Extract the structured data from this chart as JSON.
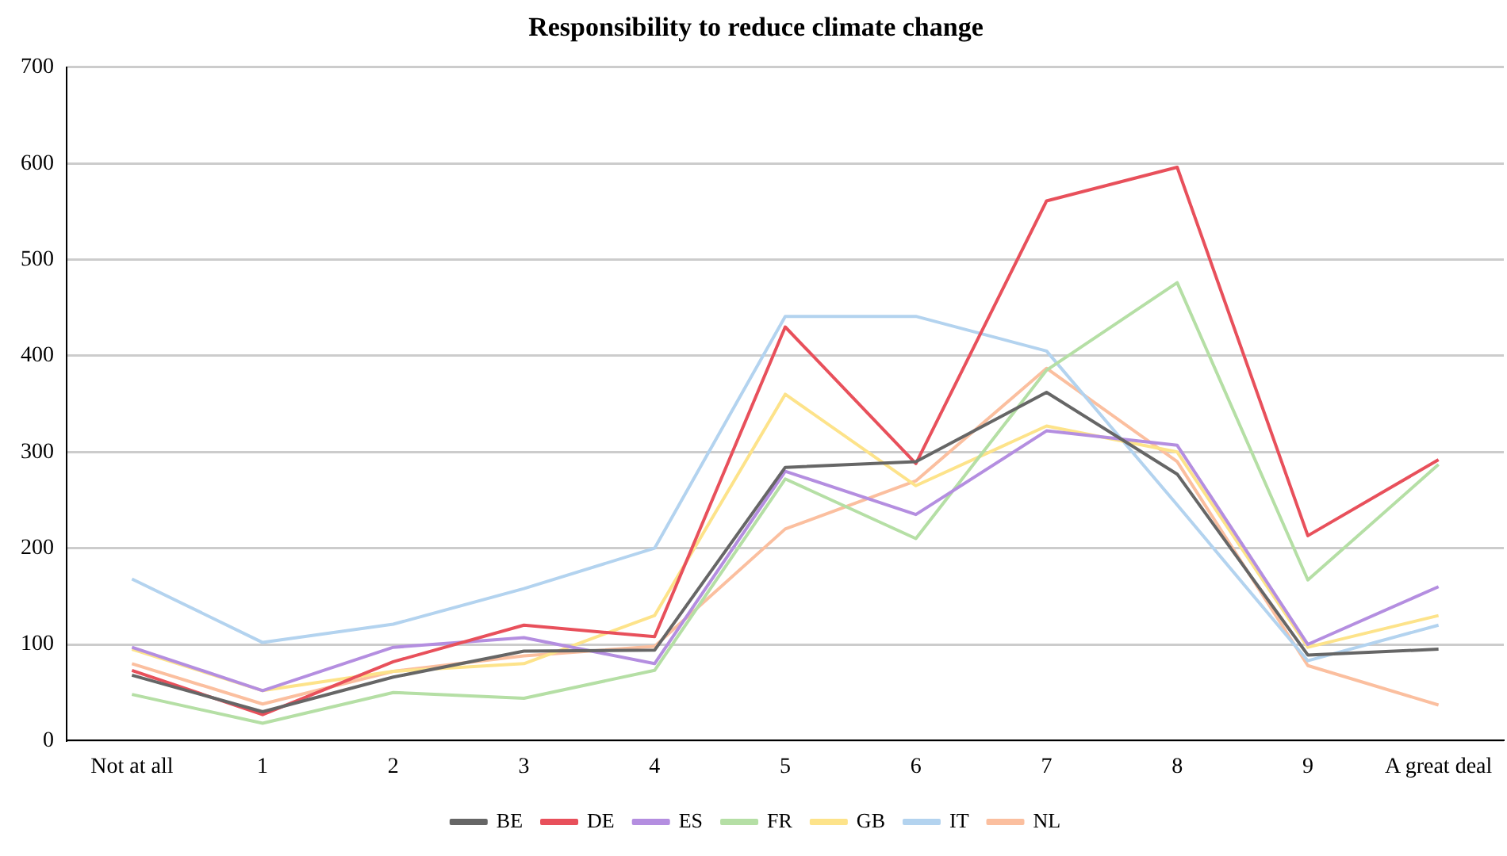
{
  "chart_data": {
    "type": "line",
    "title": "Responsibility to reduce climate change",
    "categories": [
      "Not at all",
      "1",
      "2",
      "3",
      "4",
      "5",
      "6",
      "7",
      "8",
      "9",
      "A great deal"
    ],
    "series": [
      {
        "name": "BE",
        "color": "#666666",
        "values": [
          68,
          30,
          66,
          93,
          94,
          284,
          290,
          362,
          277,
          89,
          95
        ]
      },
      {
        "name": "DE",
        "color": "#e8505b",
        "values": [
          73,
          27,
          82,
          120,
          108,
          430,
          288,
          561,
          596,
          213,
          292
        ]
      },
      {
        "name": "ES",
        "color": "#b48ee0",
        "values": [
          97,
          52,
          97,
          107,
          80,
          280,
          235,
          322,
          307,
          100,
          160
        ]
      },
      {
        "name": "FR",
        "color": "#b5dfa5",
        "values": [
          48,
          18,
          50,
          44,
          73,
          272,
          210,
          385,
          476,
          167,
          287
        ]
      },
      {
        "name": "GB",
        "color": "#fde38a",
        "values": [
          95,
          52,
          72,
          80,
          130,
          360,
          265,
          327,
          300,
          97,
          130
        ]
      },
      {
        "name": "IT",
        "color": "#b3d3ef",
        "values": [
          168,
          102,
          121,
          158,
          200,
          441,
          441,
          405,
          245,
          83,
          120
        ]
      },
      {
        "name": "NL",
        "color": "#fbbf9f",
        "values": [
          80,
          38,
          72,
          88,
          98,
          220,
          270,
          387,
          290,
          78,
          37
        ]
      }
    ],
    "ylim": [
      0,
      700
    ],
    "yticks": [
      0,
      100,
      200,
      300,
      400,
      500,
      600,
      700
    ],
    "grid": "y",
    "legend": "bottom",
    "marker": "none",
    "line_style": "solid"
  }
}
